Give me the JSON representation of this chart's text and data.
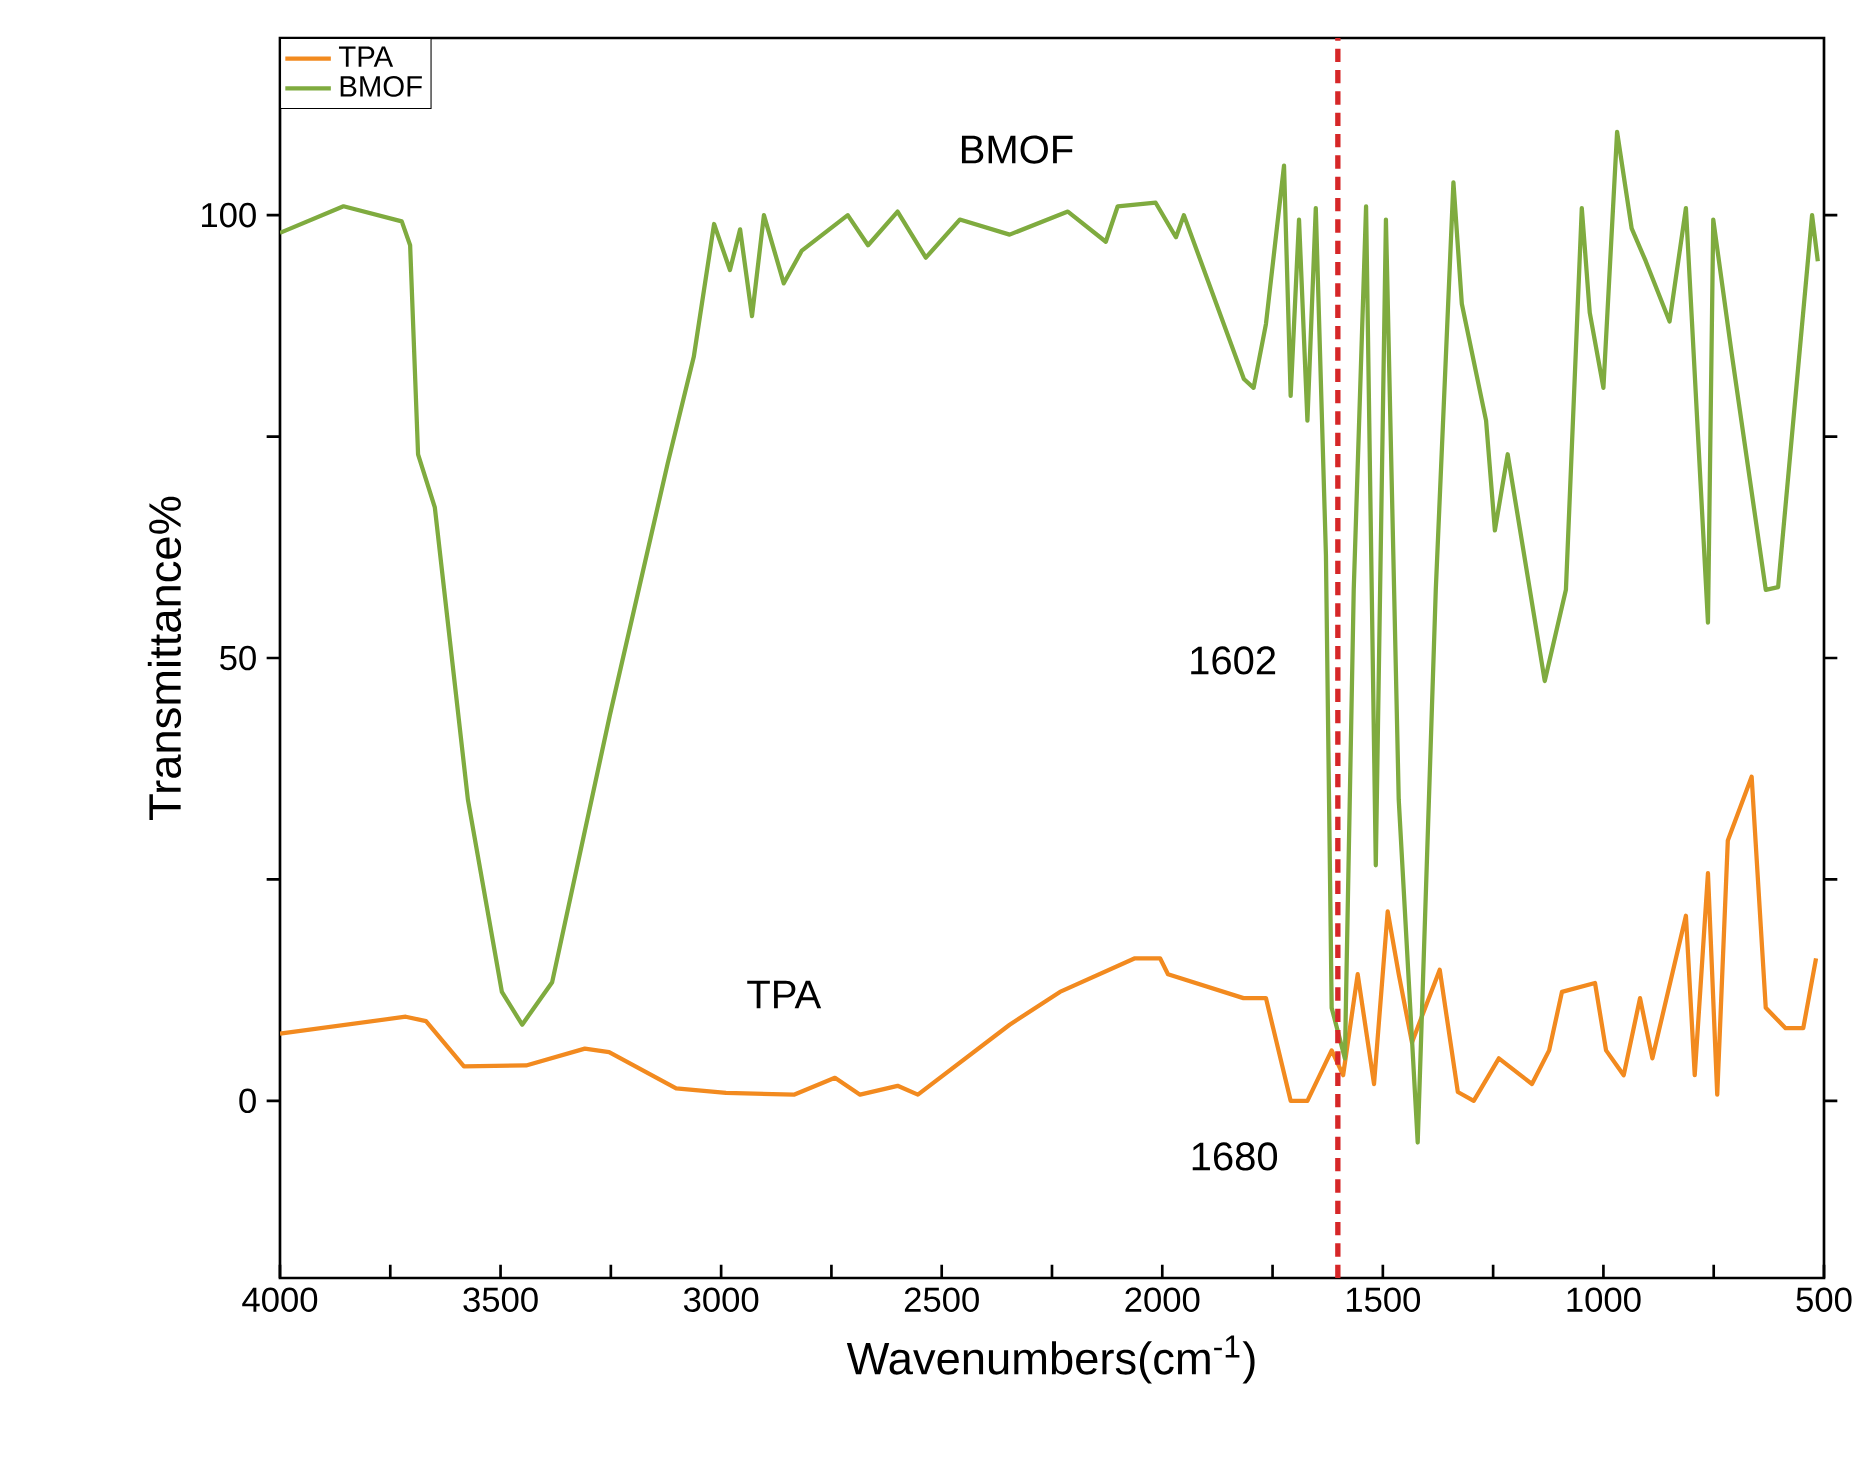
{
  "chart_data": {
    "type": "line",
    "xlabel": "Wavenumbers(cm$^{-1}$)",
    "ylabel": "Transmittance%",
    "xlim": [
      4000,
      500
    ],
    "ylim": [
      -20,
      120
    ],
    "xticks": [
      4000,
      {
        "value": 3750,
        "label": null
      },
      3500,
      {
        "value": 3250,
        "label": null
      },
      3000,
      {
        "value": 2750,
        "label": null
      },
      2500,
      {
        "value": 2250,
        "label": null
      },
      2000,
      {
        "value": 1750,
        "label": null
      },
      1500,
      {
        "value": 1250,
        "label": null
      },
      1000,
      {
        "value": 750,
        "label": null
      },
      500
    ],
    "yticks": [
      0,
      {
        "value": 25,
        "label": null
      },
      50,
      {
        "value": 75,
        "label": null
      },
      100
    ],
    "grid": false,
    "legend": "top left",
    "marker": "none",
    "line_style": "solid",
    "series": [
      {
        "name": "TPA",
        "color": "#f28a1f",
        "x": [
          4000,
          3715,
          3669,
          3583,
          3442,
          3309,
          3254,
          3102,
          2989,
          2835,
          2742,
          2685,
          2600,
          2554,
          2346,
          2232,
          2062,
          2005,
          1987,
          1816,
          1765,
          1709,
          1671,
          1616,
          1590,
          1557,
          1520,
          1489,
          1464,
          1434,
          1371,
          1330,
          1294,
          1237,
          1162,
          1123,
          1094,
          1019,
          994,
          954,
          917,
          889,
          813,
          793,
          763,
          742,
          718,
          664,
          632,
          587,
          547,
          518
        ],
        "values": [
          7.6,
          9.5,
          9,
          3.9,
          4,
          5.9,
          5.5,
          1.4,
          0.9,
          0.7,
          2.6,
          0.7,
          1.7,
          0.7,
          8.6,
          12.3,
          16.1,
          16.1,
          14.3,
          11.6,
          11.6,
          0,
          0,
          5.7,
          2.9,
          14.3,
          1.9,
          21.4,
          14.3,
          6.6,
          14.8,
          1,
          0,
          4.8,
          1.9,
          5.7,
          12.3,
          13.3,
          5.7,
          2.9,
          11.6,
          4.8,
          20.9,
          2.9,
          25.7,
          0.7,
          29.4,
          36.6,
          10.5,
          8.2,
          8.2,
          16.1
        ]
      },
      {
        "name": "BMOF",
        "color": "#7fab3f",
        "x": [
          4000,
          3856,
          3724,
          3705,
          3687,
          3649,
          3574,
          3497,
          3451,
          3383,
          3252,
          3121,
          3062,
          3016,
          2980,
          2957,
          2930,
          2903,
          2858,
          2817,
          2713,
          2667,
          2600,
          2536,
          2459,
          2346,
          2214,
          2128,
          2101,
          2015,
          1969,
          1951,
          1815,
          1793,
          1765,
          1724,
          1709,
          1690,
          1671,
          1652,
          1629,
          1616,
          1586,
          1566,
          1538,
          1516,
          1493,
          1464,
          1421,
          1380,
          1340,
          1321,
          1266,
          1246,
          1217,
          1133,
          1085,
          1049,
          1031,
          1000,
          969,
          936,
          904,
          850,
          813,
          763,
          751,
          709,
          632,
          604,
          527,
          514
        ],
        "values": [
          98,
          101,
          99.3,
          96.6,
          73,
          67,
          34,
          12.3,
          8.6,
          13.4,
          43.6,
          72,
          84,
          99,
          93.8,
          98.4,
          88.6,
          100,
          92.3,
          96,
          100,
          96.6,
          100.4,
          95.2,
          99.5,
          97.8,
          100.4,
          97,
          101,
          101.4,
          97.5,
          100,
          81.5,
          80.5,
          87.7,
          105.6,
          79.6,
          99.5,
          76.8,
          100.8,
          61.6,
          10.5,
          4.8,
          57.7,
          101,
          26.6,
          99.5,
          34,
          -4.7,
          57.7,
          103.7,
          90,
          76.8,
          64.4,
          73,
          47.4,
          57.7,
          100.8,
          89,
          80.5,
          109.4,
          98.5,
          94.8,
          88,
          100.8,
          54,
          99.5,
          84.3,
          57.7,
          58,
          100,
          94.8
        ]
      }
    ],
    "ref_lines": [
      {
        "axis": "x",
        "value": 1602,
        "color": "#d62728",
        "line_style": "dashed"
      }
    ],
    "annotations": [
      "BMOF",
      {
        "text": "TPA",
        "x": 2858,
        "y": 12
      },
      "1602",
      "1680"
    ]
  }
}
